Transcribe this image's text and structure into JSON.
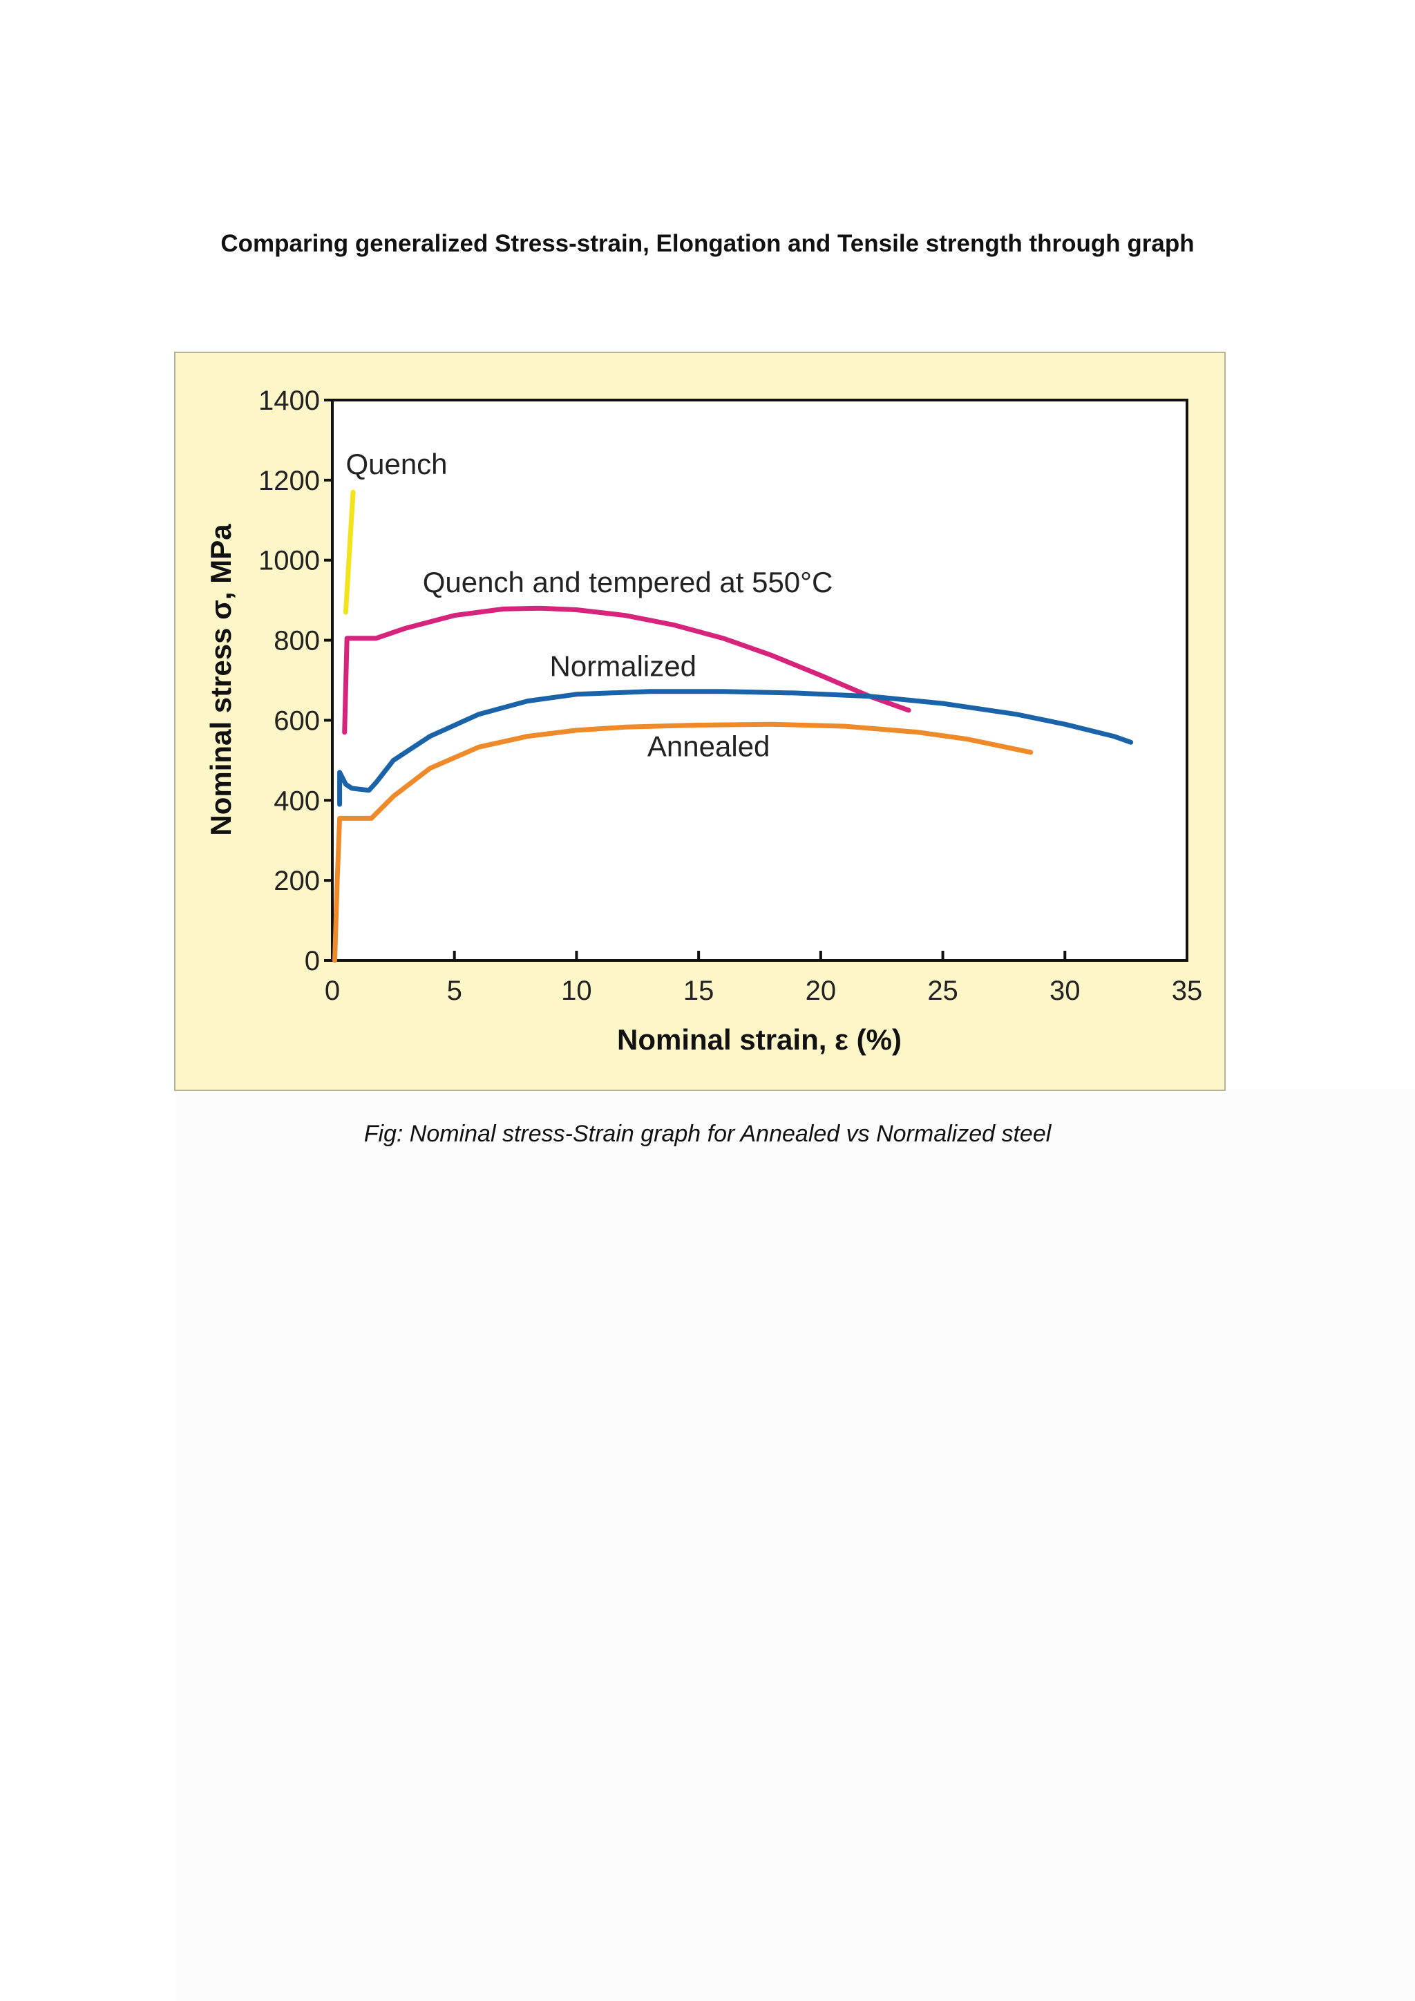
{
  "document": {
    "title": "Comparing generalized Stress-strain, Elongation and Tensile strength through graph",
    "caption": "Fig: Nominal stress-Strain graph for Annealed vs Normalized steel"
  },
  "colors": {
    "background": "#fdf6c8",
    "quench": "#f2e31b",
    "quench_tempered": "#d6237c",
    "normalized": "#1b63a8",
    "annealed": "#ef8a2b",
    "axis": "#111111"
  },
  "chart_data": {
    "type": "line",
    "title": "",
    "xlabel": "Nominal strain, ε (%)",
    "ylabel": "Nominal stress σ, MPa",
    "xlim": [
      0,
      35
    ],
    "ylim": [
      0,
      1400
    ],
    "xticks": [
      "0",
      "5",
      "10",
      "15",
      "20",
      "25",
      "30",
      "35"
    ],
    "xtick_values": [
      0,
      5,
      10,
      15,
      20,
      25,
      30,
      35
    ],
    "yticks": [
      "0",
      "200",
      "400",
      "600",
      "800",
      "1000",
      "1200",
      "1400"
    ],
    "ytick_values": [
      0,
      200,
      400,
      600,
      800,
      1000,
      1200,
      1400
    ],
    "grid": false,
    "legend": "none",
    "series": [
      {
        "name": "Quench",
        "color_key": "quench",
        "x": [
          0.55,
          0.85
        ],
        "y": [
          870,
          1170
        ]
      },
      {
        "name": "Quench and tempered at 550°C",
        "color_key": "quench_tempered",
        "x": [
          0.5,
          0.6,
          1.0,
          1.8,
          3,
          5,
          7,
          8.5,
          10,
          12,
          14,
          16,
          18,
          20,
          22,
          23.6
        ],
        "y": [
          570,
          805,
          805,
          805,
          830,
          862,
          878,
          880,
          876,
          862,
          838,
          805,
          762,
          712,
          660,
          625
        ]
      },
      {
        "name": "Normalized",
        "color_key": "normalized",
        "x": [
          0.3,
          0.3,
          0.55,
          0.8,
          1.5,
          1.8,
          2.5,
          4,
          6,
          8,
          10,
          13,
          16,
          19,
          22,
          25,
          28,
          30,
          32,
          32.7
        ],
        "y": [
          390,
          470,
          440,
          430,
          425,
          445,
          500,
          560,
          615,
          648,
          665,
          672,
          672,
          668,
          660,
          642,
          615,
          590,
          560,
          545
        ]
      },
      {
        "name": "Annealed",
        "color_key": "annealed",
        "x": [
          0.1,
          0.2,
          0.3,
          1.0,
          1.6,
          2.5,
          4,
          6,
          8,
          10,
          12,
          15,
          18,
          21,
          24,
          26,
          28.6
        ],
        "y": [
          0,
          200,
          355,
          355,
          355,
          410,
          480,
          533,
          560,
          575,
          583,
          588,
          590,
          585,
          570,
          553,
          520
        ]
      }
    ],
    "annotations": [
      {
        "text": "Quench",
        "x": 0.55,
        "y": 1215
      },
      {
        "text": "Quench and tempered at 550°C",
        "x": 3.7,
        "y": 920
      },
      {
        "text": "Normalized",
        "x": 8.9,
        "y": 710
      },
      {
        "text": "Annealed",
        "x": 12.9,
        "y": 510
      }
    ]
  }
}
